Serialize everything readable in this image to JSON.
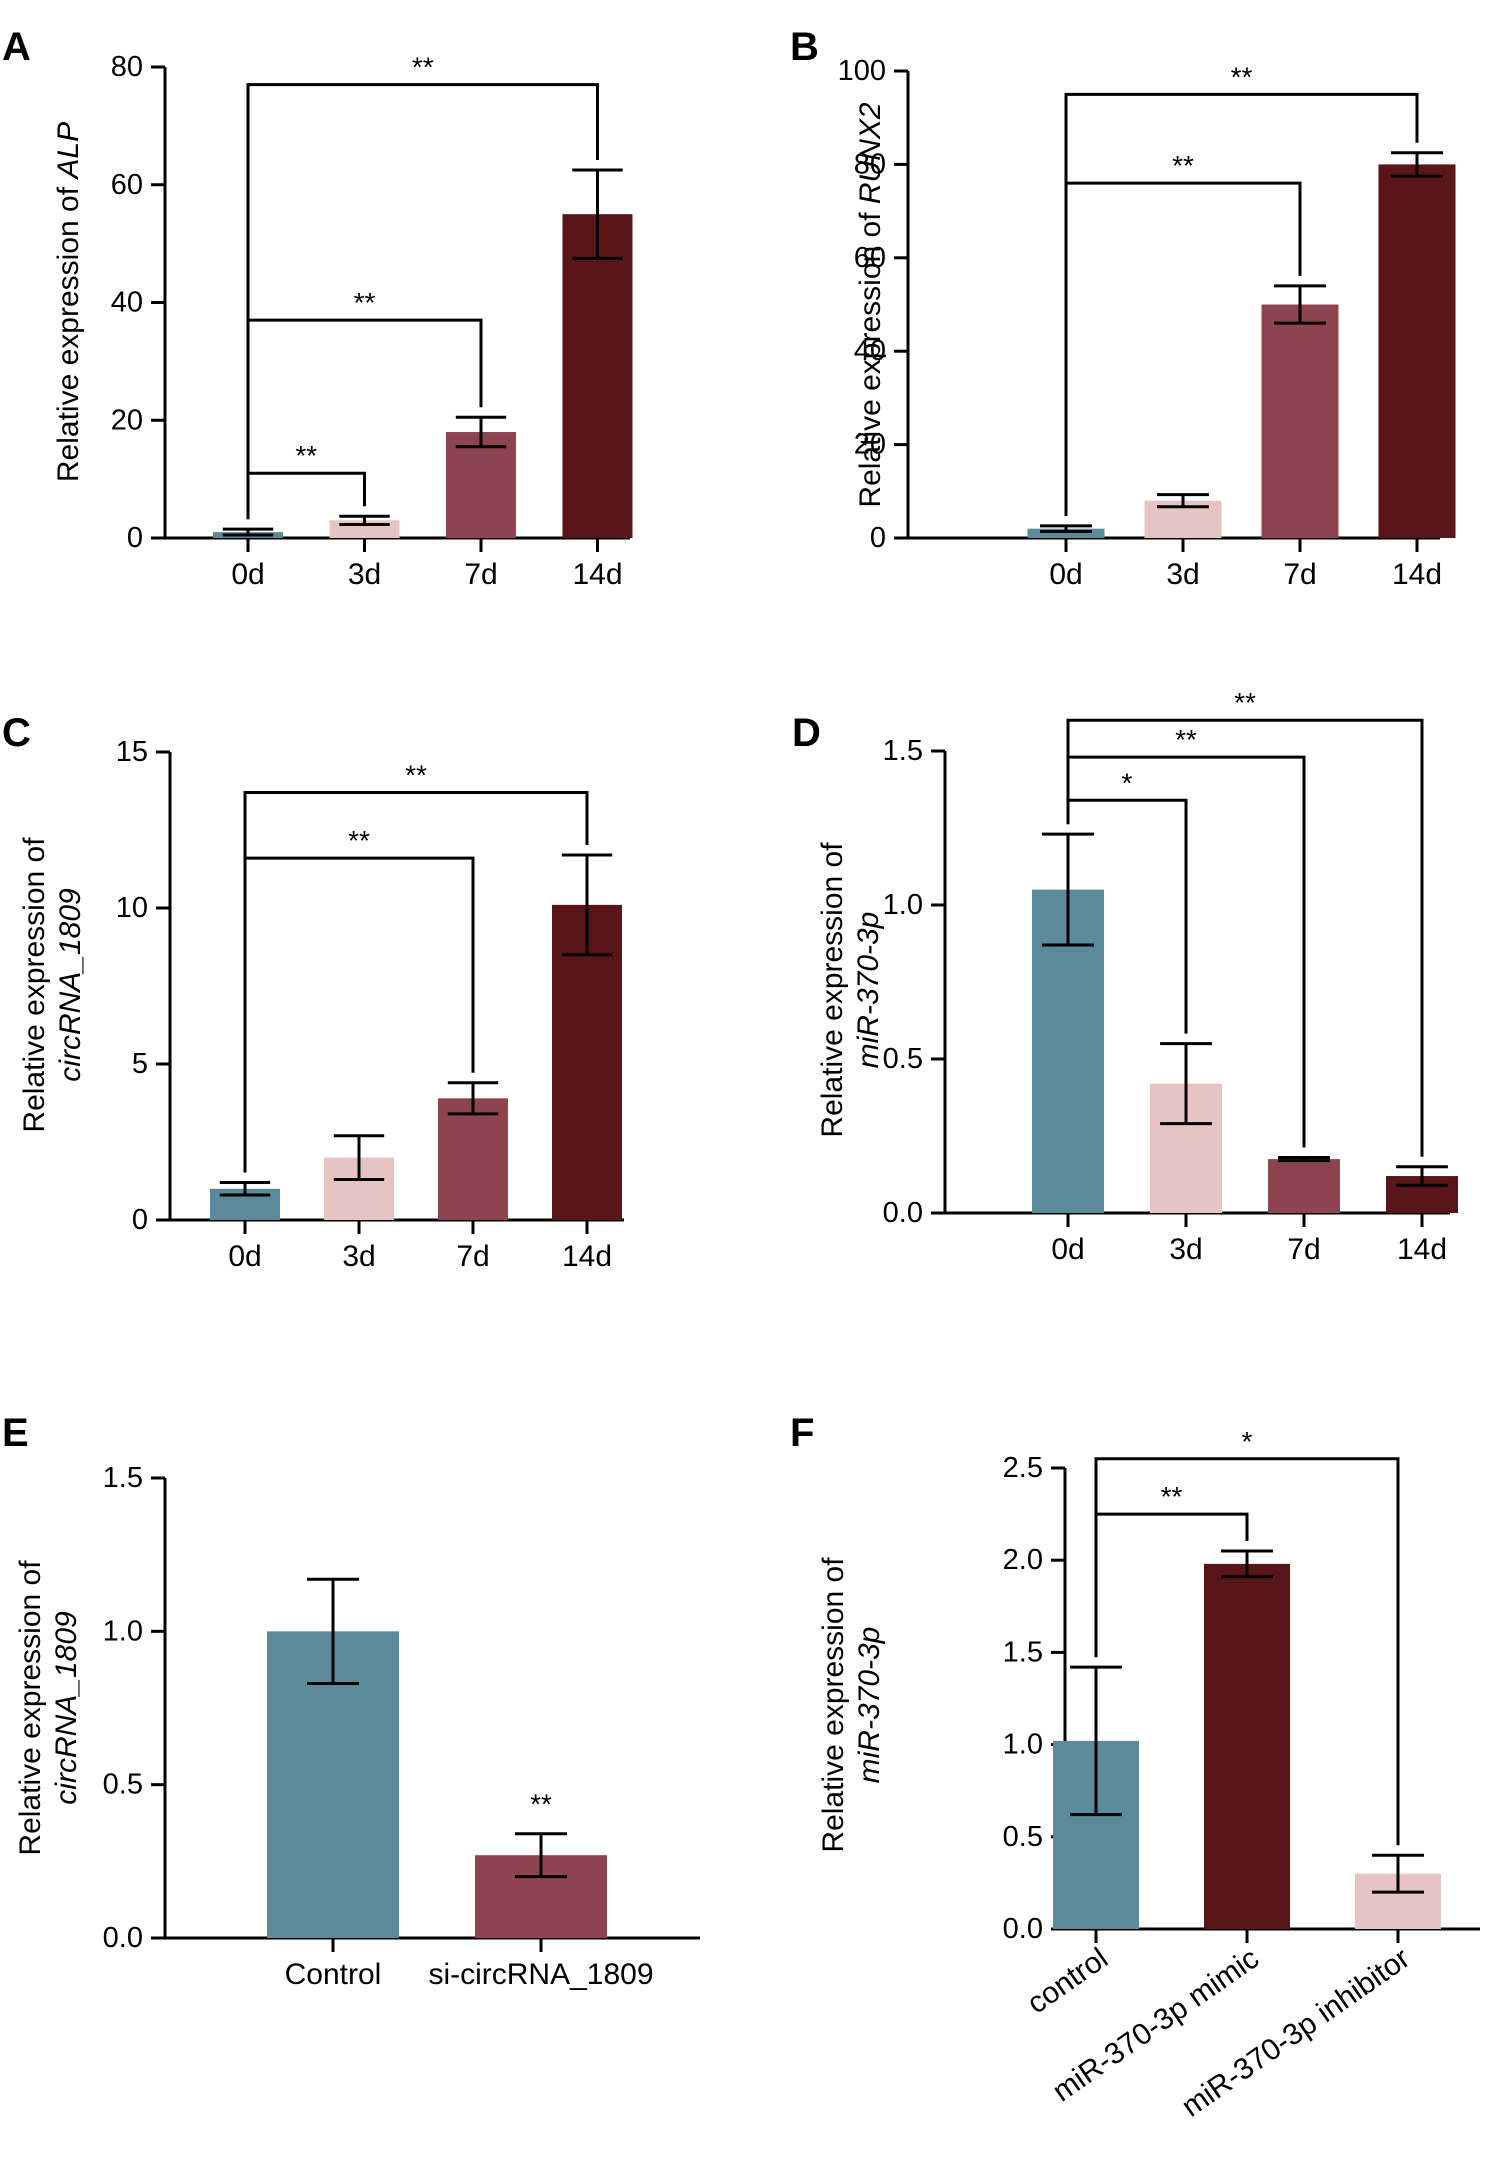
{
  "palette": {
    "d0": "#5b8a9a",
    "d3": "#e6c4c2",
    "d7": "#8d444f",
    "d14": "#5a1518",
    "control": "#5b8a9a",
    "si": "#8d444f",
    "mimic": "#5a1518",
    "inhibitor": "#e6c4c2"
  },
  "chart_data": [
    {
      "panel": "A",
      "type": "bar",
      "categories": [
        "0d",
        "3d",
        "7d",
        "14d"
      ],
      "values": [
        1,
        3,
        18,
        55
      ],
      "errors": [
        0.5,
        0.7,
        2.5,
        7.5
      ],
      "color_keys": [
        "d0",
        "d3",
        "d7",
        "d14"
      ],
      "ylabel_parts": [
        {
          "text": "Relative expression of "
        },
        {
          "text": "ALP",
          "italic": true
        }
      ],
      "ylim": [
        0,
        80
      ],
      "yticks": [
        "0",
        "20",
        "40",
        "60",
        "80"
      ],
      "significance": [
        {
          "from": 0,
          "to": 1,
          "label": "**",
          "level": 11
        },
        {
          "from": 0,
          "to": 2,
          "label": "**",
          "level": 37
        },
        {
          "from": 0,
          "to": 3,
          "label": "**",
          "level": 77
        }
      ]
    },
    {
      "panel": "B",
      "type": "bar",
      "categories": [
        "0d",
        "3d",
        "7d",
        "14d"
      ],
      "values": [
        2,
        8,
        50,
        80
      ],
      "errors": [
        0.6,
        1.3,
        4,
        2.5
      ],
      "color_keys": [
        "d0",
        "d3",
        "d7",
        "d14"
      ],
      "ylabel_parts": [
        {
          "text": "Relative expression of "
        },
        {
          "text": "RUNX2",
          "italic": true
        }
      ],
      "ylim": [
        0,
        100
      ],
      "yticks": [
        "0",
        "20",
        "40",
        "60",
        "80",
        "100"
      ],
      "significance": [
        {
          "from": 0,
          "to": 2,
          "label": "**",
          "level": 76
        },
        {
          "from": 0,
          "to": 3,
          "label": "**",
          "level": 95
        }
      ]
    },
    {
      "panel": "C",
      "type": "bar",
      "categories": [
        "0d",
        "3d",
        "7d",
        "14d"
      ],
      "values": [
        1,
        2,
        3.9,
        10.1
      ],
      "errors": [
        0.2,
        0.7,
        0.5,
        1.6
      ],
      "color_keys": [
        "d0",
        "d3",
        "d7",
        "d14"
      ],
      "ylabel_parts": [
        {
          "text": "Relative expression of"
        },
        {
          "text": "circRNA_1809",
          "italic": true
        }
      ],
      "ylim": [
        0,
        15
      ],
      "yticks": [
        "0",
        "5",
        "10",
        "15"
      ],
      "significance": [
        {
          "from": 0,
          "to": 2,
          "label": "**",
          "level": 11.6
        },
        {
          "from": 0,
          "to": 3,
          "label": "**",
          "level": 13.7
        }
      ]
    },
    {
      "panel": "D",
      "type": "bar",
      "categories": [
        "0d",
        "3d",
        "7d",
        "14d"
      ],
      "values": [
        1.05,
        0.42,
        0.175,
        0.12
      ],
      "errors": [
        0.18,
        0.13,
        0.005,
        0.03
      ],
      "color_keys": [
        "d0",
        "d3",
        "d7",
        "d14"
      ],
      "ylabel_parts": [
        {
          "text": "Relative expression of"
        },
        {
          "text": "miR-370-3p",
          "italic": true
        }
      ],
      "ylim": [
        0,
        1.5
      ],
      "yticks": [
        "0.0",
        "0.5",
        "1.0",
        "1.5"
      ],
      "significance": [
        {
          "from": 0,
          "to": 1,
          "label": "*",
          "level": 1.34
        },
        {
          "from": 0,
          "to": 2,
          "label": "**",
          "level": 1.48
        },
        {
          "from": 0,
          "to": 3,
          "label": "**",
          "level": 1.6
        }
      ]
    },
    {
      "panel": "E",
      "type": "bar",
      "categories": [
        "Control",
        "si-circRNA_1809"
      ],
      "values": [
        1.0,
        0.27
      ],
      "errors": [
        0.17,
        0.07
      ],
      "color_keys": [
        "control",
        "si"
      ],
      "ylabel_parts": [
        {
          "text": "Relative expression of"
        },
        {
          "text": "circRNA_1809",
          "italic": true
        }
      ],
      "ylim": [
        0,
        1.5
      ],
      "yticks": [
        "0.0",
        "0.5",
        "1.0",
        "1.5"
      ],
      "significance": [
        {
          "to": 1,
          "label": "**",
          "above_bar": true
        }
      ]
    },
    {
      "panel": "F",
      "type": "bar",
      "categories": [
        "control",
        "miR-370-3p mimic",
        "miR-370-3p inhibitor"
      ],
      "values": [
        1.02,
        1.98,
        0.3
      ],
      "errors": [
        0.4,
        0.07,
        0.1
      ],
      "color_keys": [
        "control",
        "mimic",
        "inhibitor"
      ],
      "ylabel_parts": [
        {
          "text": "Relative expression of"
        },
        {
          "text": "miR-370-3p",
          "italic": true
        }
      ],
      "ylim": [
        0,
        2.5
      ],
      "yticks": [
        "0.0",
        "0.5",
        "1.0",
        "1.5",
        "2.0",
        "2.5"
      ],
      "rotated_labels": true,
      "significance": [
        {
          "from": 0,
          "to": 1,
          "label": "**",
          "level": 2.25
        },
        {
          "from": 0,
          "to": 2,
          "label": "*",
          "level": 2.55
        }
      ]
    }
  ]
}
